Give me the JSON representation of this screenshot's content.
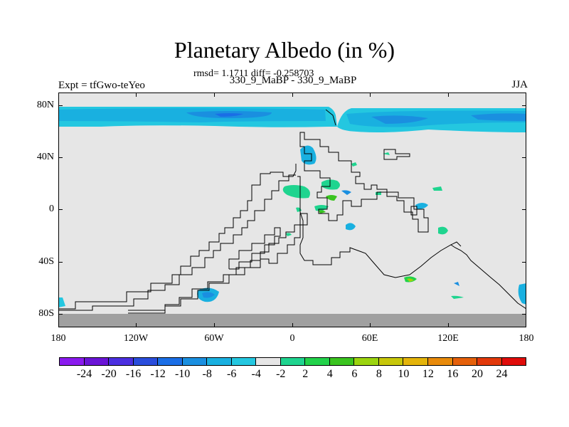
{
  "title": "Planetary Albedo (in %)",
  "stats": "rmsd= 1.1711 diff= -0.258703",
  "subtitle": "330_9_MaBP - 330_9_MaBP",
  "left_label": "Expt = tfGwo-teYeo",
  "right_label": "JJA",
  "y_ticks": [
    "80N",
    "40N",
    "0",
    "40S",
    "80S"
  ],
  "x_ticks": [
    "180",
    "120W",
    "60W",
    "0",
    "60E",
    "120E",
    "180"
  ],
  "colorbar": {
    "colors": [
      "#8a1aee",
      "#6a14d6",
      "#4b2fe0",
      "#2a4ddc",
      "#1a6ee6",
      "#1a8fe0",
      "#19b0e0",
      "#24c7e0",
      "#e6e6e6",
      "#1fd48f",
      "#22d24a",
      "#3ac41f",
      "#9bd40f",
      "#c7c70a",
      "#e4b40a",
      "#e88a0a",
      "#e5600a",
      "#e2380a",
      "#e00c0a"
    ],
    "labels": [
      "-24",
      "-20",
      "-16",
      "-12",
      "-10",
      "-8",
      "-6",
      "-4",
      "-2",
      "2",
      "4",
      "6",
      "8",
      "10",
      "12",
      "16",
      "20",
      "24"
    ]
  }
}
